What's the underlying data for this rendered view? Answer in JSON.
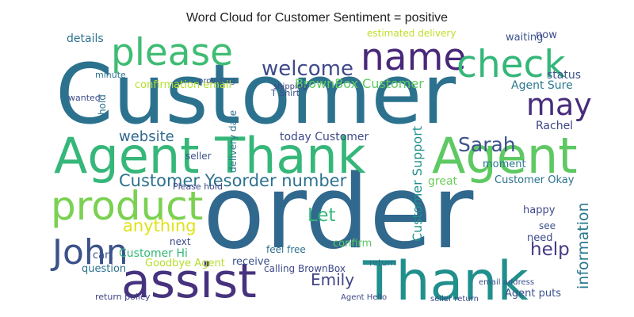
{
  "chart_data": {
    "type": "wordcloud",
    "title": "Word Cloud for Customer Sentiment = positive",
    "words": [
      "Customer",
      "order",
      "Agent Thank",
      "Agent",
      "Thank",
      "assist",
      "product",
      "please",
      "name",
      "check",
      "John",
      "may",
      "welcome",
      "Sarah",
      "Customer Yesorder number",
      "BrownBox Customer",
      "anything",
      "Let",
      "help",
      "information",
      "Customer Support",
      "Emily",
      "website",
      "today Customer",
      "details",
      "confirmation email",
      "estimated delivery",
      "waiting",
      "now",
      "status",
      "Agent Sure",
      "Rachel",
      "Customer Okay",
      "happy",
      "see",
      "need",
      "great",
      "Customer Hi",
      "Goodbye Agent",
      "question",
      "cart",
      "next",
      "receive",
      "calling BrownBox",
      "feel free",
      "confirm",
      "return policy",
      "return",
      "Agent puts",
      "Agent Hello",
      "Please hold",
      "seller",
      "moment",
      "delivery date",
      "minute",
      "providing",
      "wanted",
      "T Shirt",
      "shipping",
      "email address",
      "seller return",
      "hold"
    ],
    "values": [
      104,
      128,
      62,
      62,
      68,
      60,
      50,
      47,
      47,
      47,
      44,
      38,
      26,
      25,
      21,
      16,
      21,
      23,
      23,
      19,
      16,
      20,
      18,
      14,
      14,
      13,
      12,
      13,
      13,
      14,
      14,
      14,
      13,
      13,
      12,
      13,
      14,
      14,
      13,
      13,
      13,
      12,
      13,
      12,
      12,
      13,
      11,
      11,
      13,
      10,
      11,
      12,
      13,
      12,
      11,
      10,
      11,
      11,
      10,
      10,
      10,
      12
    ],
    "colors": [
      "#2c728e",
      "#31688e",
      "#35b779",
      "#5ec962",
      "#21908d",
      "#46327e",
      "#7ad151",
      "#3fbc73",
      "#482878",
      "#35b779",
      "#3b528b",
      "#472d7b",
      "#3e4989",
      "#3b528b",
      "#2c728e",
      "#5ec962",
      "#dde318",
      "#35b779",
      "#443983",
      "#2a788e",
      "#21908d",
      "#414487",
      "#31688e",
      "#3e4989",
      "#2c728e",
      "#b5de2b",
      "#bddf26",
      "#3b528b",
      "#3e4989",
      "#3b528b",
      "#2a788e",
      "#404688",
      "#2c728e",
      "#3e4989",
      "#3b528b",
      "#3e4989",
      "#6ccd5a",
      "#35b779",
      "#b5de2b",
      "#2c728e",
      "#3b528b",
      "#3e4989",
      "#3b528b",
      "#3e4989",
      "#2c728e",
      "#5ec962",
      "#414487",
      "#31688e",
      "#3b528b",
      "#3e4989",
      "#414487",
      "#3b528b",
      "#2a788e",
      "#2c728e",
      "#2c728e",
      "#3b528b",
      "#3e4989",
      "#3b528b",
      "#414487",
      "#3b528b",
      "#3e4989",
      "#2c728e"
    ]
  }
}
